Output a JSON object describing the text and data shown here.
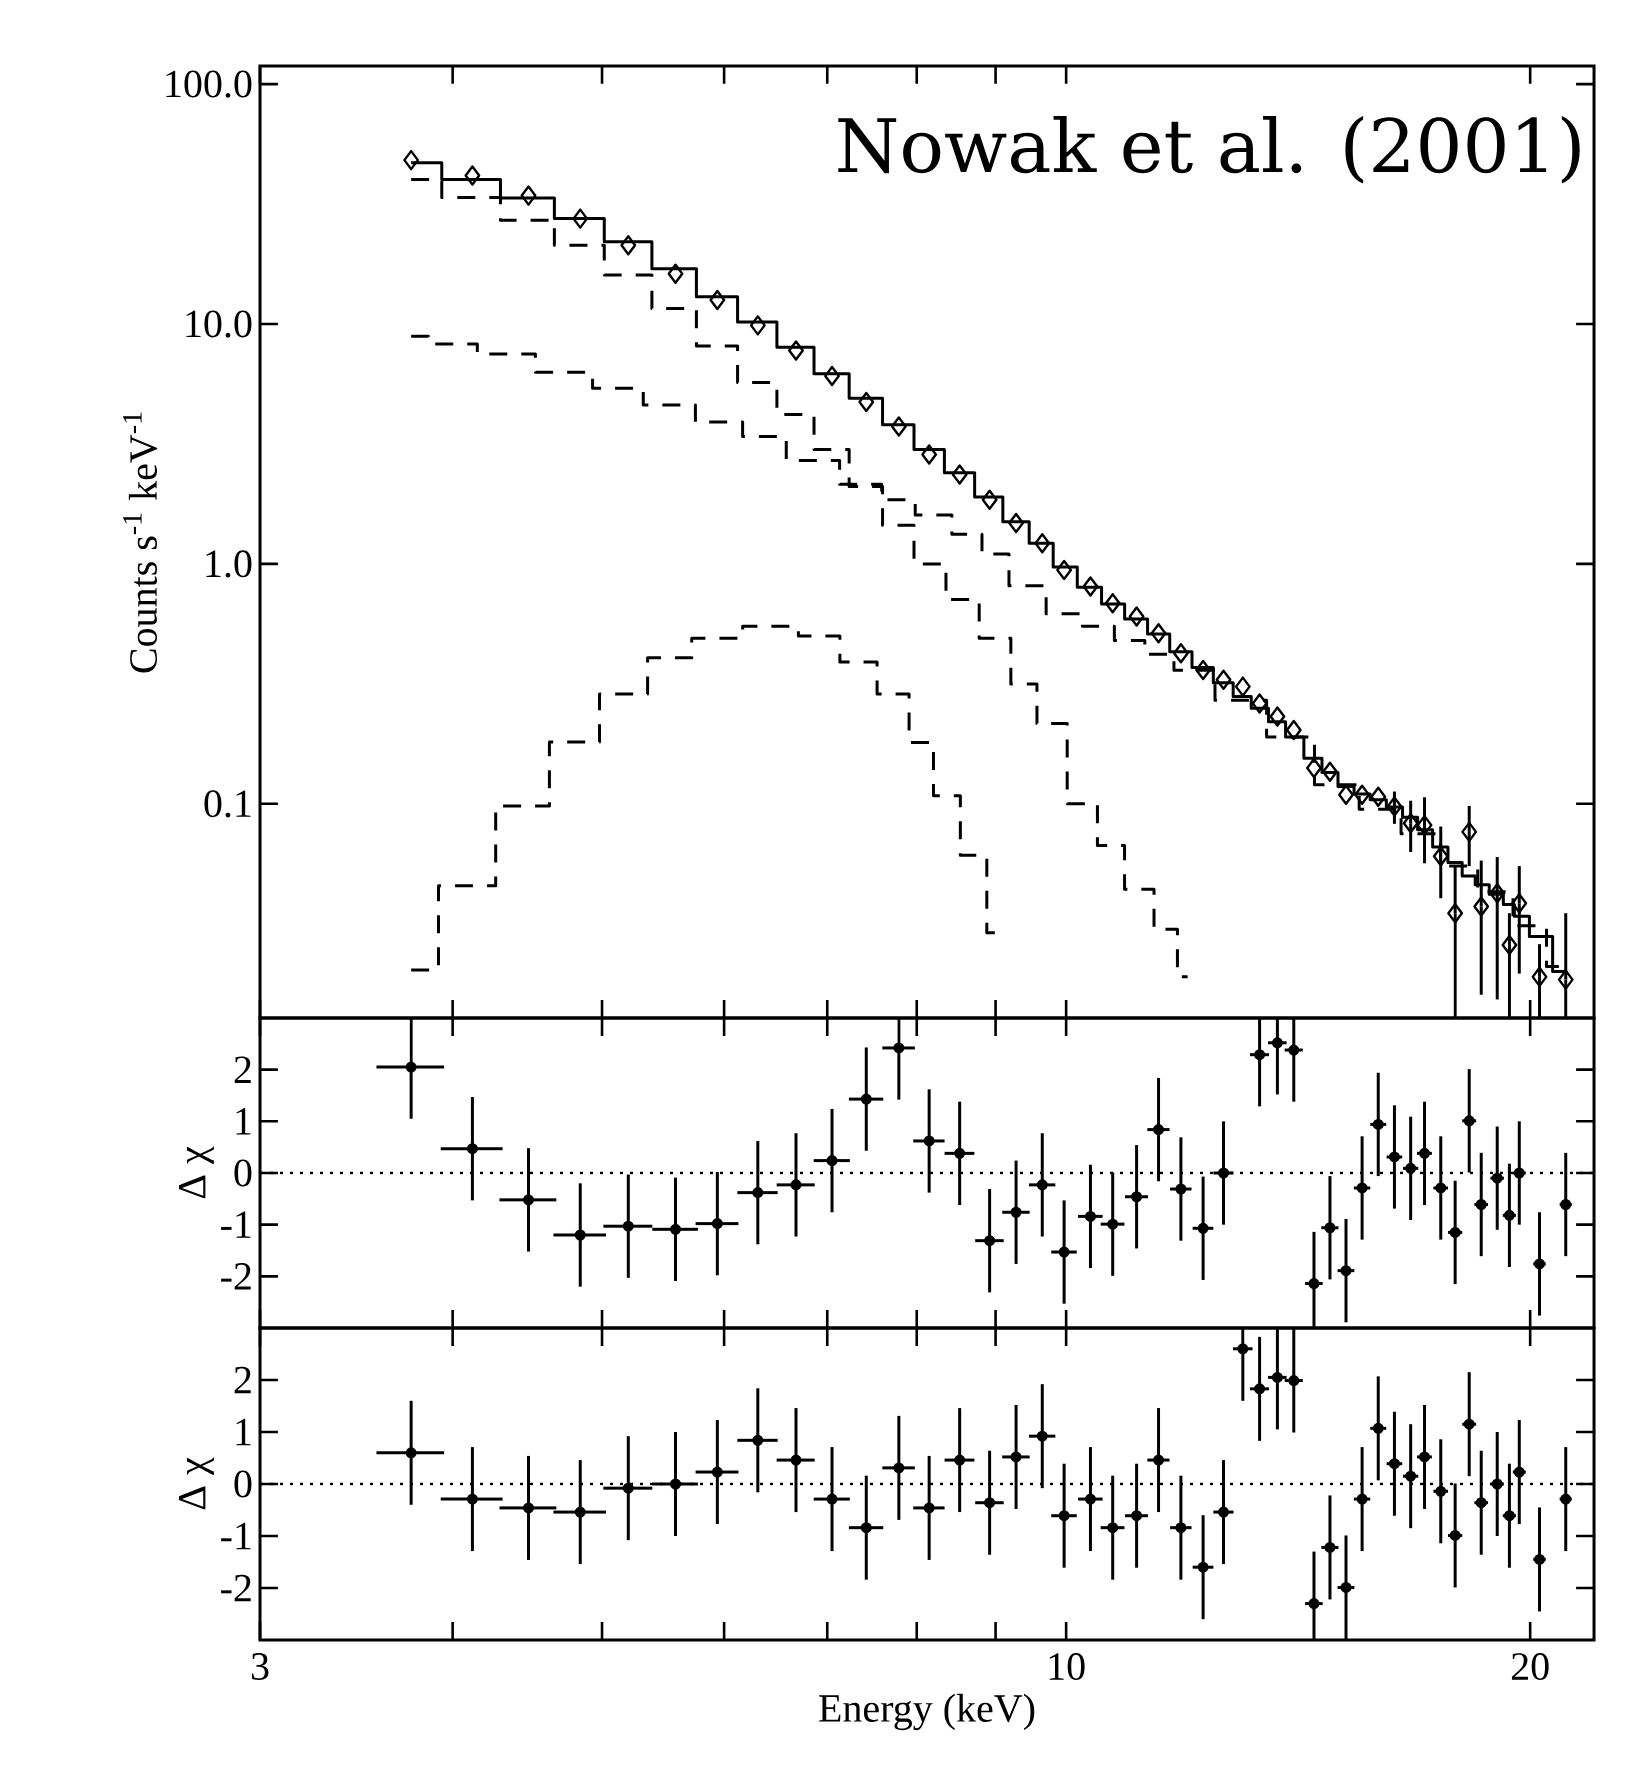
{
  "chart_data": [
    {
      "type": "step",
      "ylabel": "Counts s$^{-1}$ keV$^{-1}$",
      "annotations": [
        "Nowak et al. (2001)"
      ],
      "log": "xy",
      "xlim": [
        3,
        22
      ],
      "ylim": [
        0.0128,
        119
      ],
      "xticks": [
        3,
        {
          "value": 4,
          "label": null
        },
        {
          "value": 5,
          "label": null
        },
        {
          "value": 6,
          "label": null
        },
        {
          "value": 7,
          "label": null
        },
        {
          "value": 8,
          "label": null
        },
        {
          "value": 9,
          "label": null
        },
        10,
        20
      ],
      "yticks": [
        0.1,
        {
          "value": 1,
          "label": "1.0"
        },
        {
          "value": 10,
          "label": "10.0"
        },
        {
          "value": 100,
          "label": "100.0"
        }
      ],
      "tick_labels": "y",
      "series": [
        {
          "type": "step",
          "color": "#000000",
          "line_style": "solid",
          "x": [
            3.76,
            4.12,
            4.48,
            4.84,
            5.2,
            5.58,
            5.94,
            6.31,
            6.68,
            7.05,
            7.42,
            7.79,
            8.15,
            8.53,
            8.92,
            9.28,
            9.65,
            9.97,
            10.37,
            10.72,
            11.11,
            11.48,
            11.87,
            12.27,
            12.65,
            13.02,
            13.35,
            13.71,
            14.05,
            14.48,
            14.83,
            15.19,
            15.56,
            15.94,
            16.33,
            16.73,
            17.08,
            17.5,
            17.88,
            18.26,
            18.59,
            19.04,
            19.39,
            19.68,
            20.28,
            21.09
          ],
          "values": [
            47,
            40,
            33.5,
            27.5,
            22,
            17,
            13,
            10.2,
            8,
            6.2,
            4.9,
            3.8,
            3.0,
            2.4,
            1.9,
            1.5,
            1.22,
            0.97,
            0.8,
            0.68,
            0.59,
            0.51,
            0.43,
            0.37,
            0.32,
            0.28,
            0.25,
            0.22,
            0.19,
            0.155,
            0.135,
            0.118,
            0.11,
            0.104,
            0.097,
            0.088,
            0.078,
            0.066,
            0.057,
            0.05,
            0.046,
            0.042,
            0.038,
            0.034,
            0.028,
            0.02
          ]
        },
        {
          "type": "step",
          "color": "#000000",
          "line_style": "dashed",
          "x": [
            3.76,
            4.12,
            4.48,
            4.84,
            5.2,
            5.58,
            5.94,
            6.31,
            6.68,
            7.05,
            7.42,
            7.79,
            8.15,
            8.57,
            9.0,
            9.42,
            9.73,
            10.31,
            10.65,
            11.18,
            11.63,
            11.99
          ],
          "values": [
            40,
            33.7,
            27.1,
            21.3,
            16,
            11.6,
            8.1,
            5.7,
            4.2,
            3.0,
            2.1,
            1.45,
            1.0,
            0.71,
            0.49,
            0.316,
            0.216,
            0.1,
            0.067,
            0.044,
            0.03,
            0.019
          ]
        },
        {
          "type": "step",
          "color": "#000000",
          "line_style": "dashed",
          "x": [
            3.76,
            3.96,
            4.35,
            4.71,
            5.16,
            5.48,
            6.03,
            6.31,
            6.87,
            7.4,
            7.79,
            8.18,
            8.69,
            8.95,
            9.42,
            10.0,
            10.5,
            11.0,
            11.5,
            12.0,
            13.0,
            14.0,
            15.0,
            16.0,
            17.0,
            18.0,
            19.0,
            20.0,
            21.0
          ],
          "values": [
            8.9,
            8.25,
            7.5,
            6.3,
            5.4,
            4.6,
            3.9,
            3.4,
            2.7,
            2.15,
            1.85,
            1.6,
            1.33,
            1.1,
            0.81,
            0.62,
            0.55,
            0.48,
            0.42,
            0.36,
            0.27,
            0.19,
            0.12,
            0.095,
            0.075,
            0.055,
            0.043,
            0.031,
            0.021
          ]
        },
        {
          "type": "step",
          "color": "#000000",
          "line_style": "dashed",
          "x": [
            3.76,
            4.08,
            4.46,
            4.79,
            5.18,
            5.53,
            5.91,
            6.44,
            6.98,
            7.29,
            7.8,
            8.02,
            8.39,
            8.69,
            9.08
          ],
          "values": [
            0.0203,
            0.0455,
            0.098,
            0.181,
            0.287,
            0.406,
            0.49,
            0.55,
            0.5,
            0.39,
            0.287,
            0.18,
            0.108,
            0.061,
            0.029
          ]
        },
        {
          "type": "scatter",
          "marker": "diamond",
          "color": "#000000",
          "x": [
            3.76,
            4.12,
            4.48,
            4.84,
            5.2,
            5.58,
            5.94,
            6.31,
            6.68,
            7.05,
            7.42,
            7.79,
            8.15,
            8.53,
            8.92,
            9.28,
            9.65,
            9.97,
            10.37,
            10.72,
            11.11,
            11.48,
            11.87,
            12.27,
            12.65,
            13.02,
            13.35,
            13.71,
            14.05,
            14.48,
            14.83,
            15.19,
            15.56,
            15.94,
            16.33,
            16.73,
            17.08,
            17.5,
            17.88,
            18.26,
            18.59,
            19.04,
            19.39,
            19.68,
            20.28,
            21.09
          ],
          "values": [
            48.2,
            41.6,
            34.3,
            27.5,
            21.3,
            16.2,
            12.6,
            9.87,
            7.75,
            6.07,
            4.73,
            3.74,
            2.86,
            2.36,
            1.85,
            1.48,
            1.22,
            0.944,
            0.805,
            0.685,
            0.604,
            0.514,
            0.424,
            0.361,
            0.329,
            0.308,
            0.262,
            0.231,
            0.203,
            0.141,
            0.136,
            0.109,
            0.109,
            0.107,
            0.0975,
            0.083,
            0.0815,
            0.0604,
            0.035,
            0.0764,
            0.0373,
            0.0424,
            0.0258,
            0.0385,
            0.019,
            0.0185
          ],
          "errors": [
            null,
            null,
            null,
            null,
            null,
            null,
            null,
            null,
            null,
            null,
            null,
            null,
            null,
            null,
            null,
            null,
            null,
            null,
            null,
            null,
            null,
            null,
            null,
            null,
            null,
            null,
            null,
            null,
            null,
            null,
            null,
            null,
            null,
            null,
            0.015,
            0.02,
            0.025,
            0.02,
            [
              0.0128,
              0.055
            ],
            [
              0.055,
              0.098
            ],
            [
              0.016,
              0.058
            ],
            [
              0.0153,
              0.06
            ],
            [
              0.0128,
              0.035
            ],
            [
              0.0196,
              0.055
            ],
            [
              0.0128,
              0.026
            ],
            [
              0.0128,
              0.035
            ]
          ]
        }
      ]
    },
    {
      "type": "scatter",
      "ylabel": "Δ χ",
      "log": "x",
      "color": "#000000",
      "xlim": [
        3,
        22
      ],
      "ylim": [
        -3,
        3
      ],
      "xticks": [
        3,
        {
          "value": 4,
          "label": null
        },
        {
          "value": 5,
          "label": null
        },
        {
          "value": 6,
          "label": null
        },
        {
          "value": 7,
          "label": null
        },
        {
          "value": 8,
          "label": null
        },
        {
          "value": 9,
          "label": null
        },
        10,
        20
      ],
      "yticks": [
        -2,
        -1,
        0,
        1,
        2
      ],
      "tick_labels": "y",
      "ref_lines": [
        {
          "axis": "y",
          "value": 0,
          "line_style": "dotted"
        }
      ],
      "x": [
        3.76,
        4.12,
        4.48,
        4.84,
        5.2,
        5.58,
        5.94,
        6.31,
        6.68,
        7.05,
        7.42,
        7.79,
        8.15,
        8.53,
        8.92,
        9.28,
        9.65,
        9.97,
        10.37,
        10.72,
        11.11,
        11.48,
        11.87,
        12.27,
        12.65,
        13.35,
        13.71,
        14.05,
        14.48,
        14.83,
        15.19,
        15.56,
        15.94,
        16.33,
        16.73,
        17.08,
        17.5,
        17.88,
        18.26,
        18.59,
        19.04,
        19.39,
        19.68,
        20.28,
        21.09
      ],
      "values": [
        2.05,
        0.47,
        -0.52,
        -1.2,
        -1.03,
        -1.09,
        -0.98,
        -0.38,
        -0.23,
        0.24,
        1.43,
        2.42,
        0.62,
        0.38,
        -1.31,
        -0.76,
        -0.23,
        -1.53,
        -0.84,
        -0.99,
        -0.46,
        0.84,
        -0.31,
        -1.07,
        0.0,
        2.29,
        2.52,
        2.38,
        -2.14,
        -1.06,
        -1.89,
        -0.29,
        0.94,
        0.31,
        0.09,
        0.38,
        -0.29,
        -1.15,
        1.01,
        -0.61,
        -0.1,
        -0.82,
        0.0,
        -1.76,
        -0.61
      ],
      "errors": [
        [
          1.05,
          3
        ],
        1,
        1,
        1,
        1,
        1,
        1,
        1,
        1,
        1,
        1,
        [
          1.42,
          3
        ],
        1,
        1,
        1,
        1,
        1,
        1,
        1,
        1,
        1,
        1,
        1,
        1,
        1,
        [
          1.29,
          3
        ],
        [
          1.52,
          3
        ],
        [
          1.38,
          3
        ],
        [
          -3,
          -1.14
        ],
        1,
        1,
        1,
        1,
        1,
        1,
        1,
        1,
        1,
        1,
        1,
        1,
        1,
        1,
        1,
        1
      ],
      "xerrors": [
        0.19,
        0.19,
        0.19,
        0.19,
        0.19,
        0.19,
        0.19,
        0.19,
        0.19,
        0.19,
        0.19,
        0.19,
        0.19,
        0.19,
        0.19,
        0.19,
        0.19,
        0.19,
        0.19,
        0.19,
        0.19,
        0.19,
        0.19,
        0.19,
        0.19,
        0.19,
        0.19,
        0.19,
        0.19,
        0.19,
        0.19,
        0.19,
        0.19,
        0.19,
        0.19,
        0.19,
        0.19,
        0.19,
        0.19,
        0.19,
        0.19,
        0.19,
        0.19,
        0.19,
        0.19
      ]
    },
    {
      "type": "scatter",
      "ylabel": "Δ χ",
      "xlabel": "Energy  (keV)",
      "log": "x",
      "color": "#000000",
      "xlim": [
        3,
        22
      ],
      "ylim": [
        -3,
        3
      ],
      "xticks": [
        3,
        {
          "value": 4,
          "label": null
        },
        {
          "value": 5,
          "label": null
        },
        {
          "value": 6,
          "label": null
        },
        {
          "value": 7,
          "label": null
        },
        {
          "value": 8,
          "label": null
        },
        {
          "value": 9,
          "label": null
        },
        10,
        20
      ],
      "yticks": [
        -2,
        -1,
        0,
        1,
        2
      ],
      "ref_lines": [
        {
          "axis": "y",
          "value": 0,
          "line_style": "dotted"
        }
      ],
      "x": [
        3.76,
        4.12,
        4.48,
        4.84,
        5.2,
        5.58,
        5.94,
        6.31,
        6.68,
        7.05,
        7.42,
        7.79,
        8.15,
        8.53,
        8.92,
        9.28,
        9.65,
        9.97,
        10.37,
        10.72,
        11.11,
        11.48,
        11.87,
        12.27,
        12.65,
        13.02,
        13.35,
        13.71,
        14.05,
        14.48,
        14.83,
        15.19,
        15.56,
        15.94,
        16.33,
        16.73,
        17.08,
        17.5,
        17.88,
        18.26,
        18.59,
        19.04,
        19.39,
        19.68,
        20.28,
        21.09
      ],
      "values": [
        0.6,
        -0.29,
        -0.46,
        -0.54,
        -0.08,
        0.0,
        0.23,
        0.84,
        0.46,
        -0.29,
        -0.84,
        0.31,
        -0.46,
        0.46,
        -0.36,
        0.52,
        0.92,
        -0.61,
        -0.29,
        -0.84,
        -0.61,
        0.46,
        -0.84,
        -1.6,
        -0.54,
        2.6,
        1.83,
        2.05,
        1.99,
        -2.3,
        -1.22,
        -1.99,
        -0.29,
        1.07,
        0.39,
        0.15,
        0.52,
        -0.14,
        -0.99,
        1.15,
        -0.36,
        0.0,
        -0.61,
        0.23,
        -1.45,
        -0.29
      ],
      "errors": [
        1,
        1,
        1,
        1,
        1,
        1,
        1,
        1,
        1,
        1,
        1,
        1,
        1,
        1,
        1,
        1,
        1,
        1,
        1,
        1,
        1,
        1,
        1,
        1,
        1,
        [
          1.6,
          3
        ],
        1,
        [
          1.05,
          3
        ],
        1,
        [
          -3,
          -1.3
        ],
        1,
        1,
        1,
        1,
        1,
        1,
        1,
        1,
        1,
        1,
        1,
        1,
        1,
        1,
        1,
        1
      ],
      "xerrors": [
        0.19,
        0.19,
        0.19,
        0.19,
        0.19,
        0.19,
        0.19,
        0.19,
        0.19,
        0.19,
        0.19,
        0.19,
        0.19,
        0.19,
        0.19,
        0.19,
        0.19,
        0.19,
        0.19,
        0.19,
        0.19,
        0.19,
        0.19,
        0.19,
        0.19,
        0.19,
        0.19,
        0.19,
        0.19,
        0.19,
        0.19,
        0.19,
        0.19,
        0.19,
        0.19,
        0.19,
        0.19,
        0.19,
        0.19,
        0.19,
        0.19,
        0.19,
        0.19,
        0.19,
        0.19,
        0.19
      ]
    }
  ]
}
